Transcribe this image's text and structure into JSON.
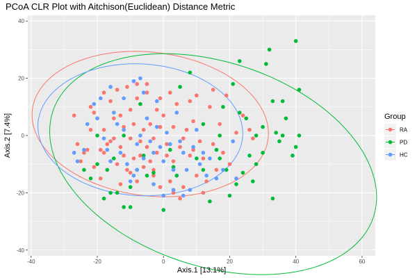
{
  "chart_data": {
    "type": "scatter",
    "title": "PCoA CLR Plot with Aitchison(Euclidean) Distance Metric",
    "xlabel": "Axis.1   [13.1%]",
    "ylabel": "Axis.2   [7.4%]",
    "xlim": [
      -41,
      64
    ],
    "ylim": [
      -42,
      42
    ],
    "xticks": [
      -40,
      -20,
      0,
      20,
      40,
      60
    ],
    "yticks": [
      -40,
      -20,
      0,
      20,
      40
    ],
    "grid": true,
    "legend": {
      "title": "Group",
      "position": "right"
    },
    "series": [
      {
        "name": "RA",
        "color": "#F8766D",
        "ellipse": {
          "cx": -4,
          "cy": 4,
          "rx": 36,
          "ry": 25,
          "angle": -10
        },
        "points": [
          [
            -27,
            7
          ],
          [
            -24,
            -6
          ],
          [
            -25,
            -9
          ],
          [
            -23,
            -5
          ],
          [
            -21,
            8
          ],
          [
            -22,
            10
          ],
          [
            -21,
            -11
          ],
          [
            -19,
            -15
          ],
          [
            -20,
            6
          ],
          [
            -19,
            -5
          ],
          [
            -18,
            2
          ],
          [
            -18,
            -6
          ],
          [
            -17,
            -3
          ],
          [
            -16,
            -9
          ],
          [
            -16,
            12
          ],
          [
            -15,
            6
          ],
          [
            -15,
            -1
          ],
          [
            -14,
            -10
          ],
          [
            -13,
            -4
          ],
          [
            -13,
            7
          ],
          [
            -12,
            -7
          ],
          [
            -12,
            3
          ],
          [
            -11,
            -12
          ],
          [
            -11,
            17
          ],
          [
            -10,
            -1
          ],
          [
            -10,
            -13
          ],
          [
            -9,
            4
          ],
          [
            -9,
            -8
          ],
          [
            -8,
            13
          ],
          [
            -7,
            -2
          ],
          [
            -7,
            -7
          ],
          [
            -6,
            2
          ],
          [
            -6,
            -11
          ],
          [
            -5,
            15
          ],
          [
            -5,
            -4
          ],
          [
            -4,
            -9
          ],
          [
            -4,
            4
          ],
          [
            -3,
            -1
          ],
          [
            -3,
            -14
          ],
          [
            -2,
            9
          ],
          [
            -2,
            -6
          ],
          [
            -1,
            3
          ],
          [
            -1,
            -18
          ],
          [
            0,
            7
          ],
          [
            1,
            -3
          ],
          [
            1,
            -7
          ],
          [
            2,
            15
          ],
          [
            2,
            -16
          ],
          [
            3,
            3
          ],
          [
            3,
            -9
          ],
          [
            4,
            11
          ],
          [
            5,
            -4
          ],
          [
            6,
            -18
          ],
          [
            7,
            2
          ],
          [
            8,
            -7
          ],
          [
            9,
            5
          ],
          [
            10,
            14
          ],
          [
            11,
            -2
          ],
          [
            12,
            -8
          ],
          [
            13,
            -16
          ],
          [
            14,
            10
          ],
          [
            15,
            -3
          ],
          [
            16,
            -12
          ],
          [
            17,
            4
          ],
          [
            18,
            -6
          ],
          [
            19,
            14
          ],
          [
            -8,
            18
          ],
          [
            -14,
            16
          ],
          [
            -18,
            15
          ],
          [
            -3,
            -12
          ],
          [
            0,
            -21
          ],
          [
            5,
            -22
          ],
          [
            10,
            -14
          ],
          [
            12,
            -20
          ],
          [
            20,
            -10
          ],
          [
            22,
            1
          ],
          [
            26,
            2
          ],
          [
            27,
            -1
          ],
          [
            -26,
            -3
          ],
          [
            -22,
            2
          ],
          [
            -13,
            -17
          ],
          [
            -8,
            -16
          ],
          [
            -5,
            18
          ],
          [
            -1,
            13
          ],
          [
            6,
            -1
          ],
          [
            8,
            12
          ],
          [
            15,
            16
          ],
          [
            24,
            7
          ],
          [
            -10,
            9
          ],
          [
            -16,
            -2
          ],
          [
            3,
            -20
          ],
          [
            9,
            -5
          ]
        ]
      },
      {
        "name": "PD",
        "color": "#00BA38",
        "ellipse": {
          "cx": 15,
          "cy": -10,
          "rx": 52,
          "ry": 35,
          "angle": -25
        },
        "points": [
          [
            40,
            33
          ],
          [
            32,
            30
          ],
          [
            23,
            26
          ],
          [
            31,
            25
          ],
          [
            -10,
            -25
          ],
          [
            -14,
            -20
          ],
          [
            -16,
            -20
          ],
          [
            -12,
            -25
          ],
          [
            -8,
            -12
          ],
          [
            -6,
            -7
          ],
          [
            -3,
            -13
          ],
          [
            2,
            -5
          ],
          [
            5,
            17
          ],
          [
            8,
            22
          ],
          [
            10,
            -8
          ],
          [
            12,
            -12
          ],
          [
            17,
            -8
          ],
          [
            19,
            -12
          ],
          [
            21,
            18
          ],
          [
            22,
            -17
          ],
          [
            23,
            8
          ],
          [
            25,
            6
          ],
          [
            27,
            -16
          ],
          [
            28,
            -10
          ],
          [
            30,
            -6
          ],
          [
            33,
            -22
          ],
          [
            34,
            1
          ],
          [
            36,
            0
          ],
          [
            37,
            6
          ],
          [
            39,
            -7
          ],
          [
            40,
            -4
          ],
          [
            41,
            0
          ],
          [
            41,
            16
          ],
          [
            -20,
            -10
          ],
          [
            -17,
            -12
          ],
          [
            -22,
            -15
          ],
          [
            -15,
            -8
          ],
          [
            -10,
            -18
          ],
          [
            -5,
            -14
          ],
          [
            0,
            -26
          ],
          [
            4,
            -14
          ],
          [
            14,
            -23
          ],
          [
            17,
            0
          ],
          [
            20,
            -21
          ],
          [
            26,
            -7
          ],
          [
            30,
            3
          ],
          [
            33,
            12
          ],
          [
            35,
            -2
          ],
          [
            -18,
            -22
          ],
          [
            -20,
            0
          ],
          [
            -24,
            -12
          ],
          [
            -12,
            0
          ],
          [
            3,
            -11
          ],
          [
            16,
            -5
          ],
          [
            24,
            -13
          ],
          [
            28,
            0
          ],
          [
            36,
            12
          ],
          [
            18,
            10
          ],
          [
            12,
            4
          ],
          [
            -7,
            11
          ]
        ]
      },
      {
        "name": "HC",
        "color": "#619CFF",
        "ellipse": {
          "cx": -7,
          "cy": 2,
          "rx": 31,
          "ry": 23,
          "angle": -5
        },
        "points": [
          [
            -27,
            -6
          ],
          [
            -26,
            -9
          ],
          [
            -24,
            -5
          ],
          [
            -23,
            4
          ],
          [
            -21,
            11
          ],
          [
            -19,
            13
          ],
          [
            -17,
            -5
          ],
          [
            -16,
            -9
          ],
          [
            -15,
            8
          ],
          [
            -14,
            4
          ],
          [
            -13,
            -6
          ],
          [
            -12,
            2
          ],
          [
            -11,
            -10
          ],
          [
            -10,
            -16
          ],
          [
            -9,
            19
          ],
          [
            -8,
            -3
          ],
          [
            -8,
            -12
          ],
          [
            -7,
            0
          ],
          [
            -6,
            -8
          ],
          [
            -5,
            6
          ],
          [
            -4,
            -2
          ],
          [
            -3,
            -6
          ],
          [
            -2,
            3
          ],
          [
            -1,
            -4
          ],
          [
            0,
            -9
          ],
          [
            1,
            1
          ],
          [
            2,
            -3
          ],
          [
            3,
            -12
          ],
          [
            4,
            8
          ],
          [
            5,
            -2
          ],
          [
            6,
            -6
          ],
          [
            7,
            -12
          ],
          [
            8,
            -19
          ],
          [
            9,
            -4
          ],
          [
            10,
            2
          ],
          [
            11,
            -10
          ],
          [
            12,
            -6
          ],
          [
            13,
            -14
          ],
          [
            14,
            -8
          ],
          [
            16,
            -15
          ],
          [
            18,
            -12
          ],
          [
            21,
            -2
          ],
          [
            22,
            -15
          ],
          [
            -18,
            -1
          ],
          [
            -20,
            6
          ],
          [
            -12,
            13
          ],
          [
            -6,
            15
          ],
          [
            -2,
            12
          ],
          [
            -16,
            17
          ],
          [
            -9,
            -14
          ],
          [
            -3,
            -17
          ],
          [
            3,
            -19
          ],
          [
            0,
            -21
          ],
          [
            6,
            -21
          ],
          [
            -7,
            20
          ]
        ]
      }
    ]
  }
}
